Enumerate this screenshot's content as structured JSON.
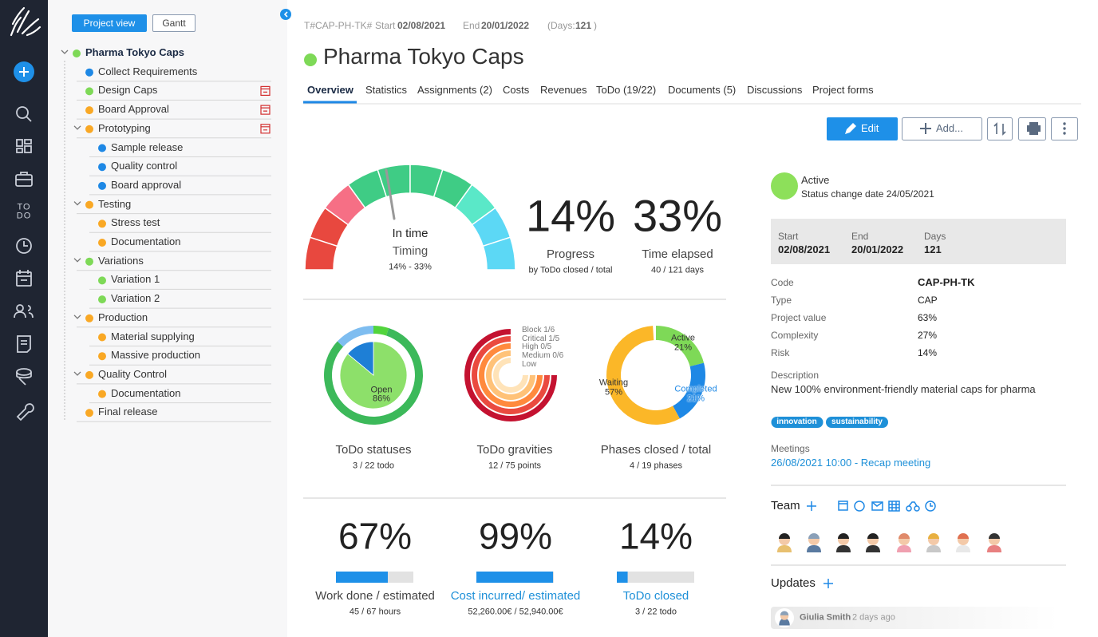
{
  "sidebar": {
    "todo_icon": [
      "TO",
      "DO"
    ]
  },
  "tree": {
    "buttons": [
      "Project view",
      "Gantt"
    ],
    "nodes": [
      {
        "label": "Pharma Tokyo Caps",
        "level": 0,
        "color": "#7ed957",
        "expanded": true,
        "calendar": false
      },
      {
        "label": "Collect Requirements",
        "level": 1,
        "color": "#1e88e5",
        "expanded": false,
        "calendar": false
      },
      {
        "label": "Design Caps",
        "level": 1,
        "color": "#7ed957",
        "expanded": false,
        "calendar": true
      },
      {
        "label": "Board Approval",
        "level": 1,
        "color": "#f9a825",
        "expanded": false,
        "calendar": true
      },
      {
        "label": "Prototyping",
        "level": 1,
        "color": "#f9a825",
        "expanded": true,
        "calendar": true
      },
      {
        "label": "Sample release",
        "level": 2,
        "color": "#1e88e5",
        "expanded": false,
        "calendar": false
      },
      {
        "label": "Quality control",
        "level": 2,
        "color": "#1e88e5",
        "expanded": false,
        "calendar": false
      },
      {
        "label": "Board approval",
        "level": 2,
        "color": "#1e88e5",
        "expanded": false,
        "calendar": false
      },
      {
        "label": "Testing",
        "level": 1,
        "color": "#f9a825",
        "expanded": true,
        "calendar": false
      },
      {
        "label": "Stress test",
        "level": 2,
        "color": "#f9a825",
        "expanded": false,
        "calendar": false
      },
      {
        "label": "Documentation",
        "level": 2,
        "color": "#f9a825",
        "expanded": false,
        "calendar": false
      },
      {
        "label": "Variations",
        "level": 1,
        "color": "#7ed957",
        "expanded": true,
        "calendar": false
      },
      {
        "label": "Variation 1",
        "level": 2,
        "color": "#7ed957",
        "expanded": false,
        "calendar": false
      },
      {
        "label": "Variation 2",
        "level": 2,
        "color": "#7ed957",
        "expanded": false,
        "calendar": false
      },
      {
        "label": "Production",
        "level": 1,
        "color": "#f9a825",
        "expanded": true,
        "calendar": false
      },
      {
        "label": "Material supplying",
        "level": 2,
        "color": "#f9a825",
        "expanded": false,
        "calendar": false
      },
      {
        "label": "Massive production",
        "level": 2,
        "color": "#f9a825",
        "expanded": false,
        "calendar": false
      },
      {
        "label": "Quality Control",
        "level": 1,
        "color": "#f9a825",
        "expanded": true,
        "calendar": false
      },
      {
        "label": "Documentation",
        "level": 2,
        "color": "#f9a825",
        "expanded": false,
        "calendar": false
      },
      {
        "label": "Final release",
        "level": 1,
        "color": "#f9a825",
        "expanded": false,
        "calendar": false
      }
    ]
  },
  "header": {
    "code": "T#CAP-PH-TK#",
    "start_label": "Start",
    "start": "02/08/2021",
    "end_label": "End",
    "end": "20/01/2022",
    "days_label": "(Days:",
    "days": "121",
    "days_close": ")"
  },
  "title": "Pharma Tokyo Caps",
  "tabs": {
    "items": [
      "Overview",
      "Statistics",
      "Assignments (2)",
      "Costs",
      "Revenues",
      "ToDo (19/22)",
      "Documents (5)",
      "Discussions",
      "Project forms"
    ],
    "active": 0
  },
  "toolbar": {
    "edit": "Edit",
    "add": "Add..."
  },
  "timing": {
    "status": "In time",
    "label": "Timing",
    "range": "14% - 33%"
  },
  "metrics": [
    {
      "value": "14%",
      "label": "Progress",
      "sub": "by ToDo closed / total"
    },
    {
      "value": "33%",
      "label": "Time elapsed",
      "sub": "40 / 121 days"
    }
  ],
  "todo_statuses": {
    "title": "ToDo statuses",
    "sub": "3 / 22 todo",
    "slices": [
      {
        "name": "Open",
        "value": 86,
        "value_label": "86%",
        "color": "#8de06a"
      },
      {
        "value": 14,
        "color": "#1e7fd6"
      }
    ],
    "ring": [
      {
        "value": 5,
        "color": "#52d43c"
      },
      {
        "value": 82,
        "color": "#3cb95a"
      },
      {
        "value": 13,
        "color": "#7ebdf0"
      }
    ]
  },
  "todo_gravities": {
    "title": "ToDo gravities",
    "sub": "12 / 75 points",
    "rings": [
      {
        "label": "Block 1/6",
        "color": "#c41230"
      },
      {
        "label": "Critical 1/5",
        "color": "#ea4a3f"
      },
      {
        "label": "High 0/5",
        "color": "#ff8a3d"
      },
      {
        "label": "Medium 0/6",
        "color": "#ffc278"
      },
      {
        "label": "Low",
        "color": "#ffe3b8"
      }
    ]
  },
  "phases": {
    "title": "Phases closed / total",
    "sub": "4 / 19 phases",
    "slices": [
      {
        "name": "Active",
        "value": 21,
        "value_label": "21%",
        "color": "#7ed957"
      },
      {
        "name": "Completed",
        "value": 21,
        "value_label": "21%",
        "color": "#1e88e5"
      },
      {
        "name": "Waiting",
        "value": 57,
        "value_label": "57%",
        "color": "#fbb728"
      }
    ]
  },
  "kpis": [
    {
      "value": 67,
      "value_label": "67%",
      "label": "Work done / estimated",
      "sub": "45 / 67 hours",
      "link": false
    },
    {
      "value": 99,
      "value_label": "99%",
      "label": "Cost incurred/ estimated",
      "sub": "52,260.00€ / 52,940.00€",
      "link": true
    },
    {
      "value": 14,
      "value_label": "14%",
      "label": "ToDo closed",
      "sub": "3 / 22 todo",
      "link": true
    }
  ],
  "details": {
    "status": "Active",
    "status_date": "Status change date 24/05/2021",
    "dates": [
      {
        "label": "Start",
        "value": "02/08/2021"
      },
      {
        "label": "End",
        "value": "20/01/2022"
      },
      {
        "label": "Days",
        "value": "121"
      }
    ],
    "fields": [
      {
        "label": "Code",
        "value": "CAP-PH-TK"
      },
      {
        "label": "Type",
        "value": "CAP"
      },
      {
        "label": "Project value",
        "value": "63%"
      },
      {
        "label": "Complexity",
        "value": "27%"
      },
      {
        "label": "Risk",
        "value": "14%"
      }
    ],
    "description_label": "Description",
    "description": "New 100% environment-friendly material caps for pharma",
    "tags": [
      "innovation",
      "sustainability"
    ],
    "meetings_label": "Meetings",
    "meeting": "26/08/2021 10:00 - Recap meeting",
    "team_label": "Team",
    "updates_label": "Updates",
    "update": {
      "author": "Giulia Smith",
      "time": "2 days ago"
    }
  }
}
